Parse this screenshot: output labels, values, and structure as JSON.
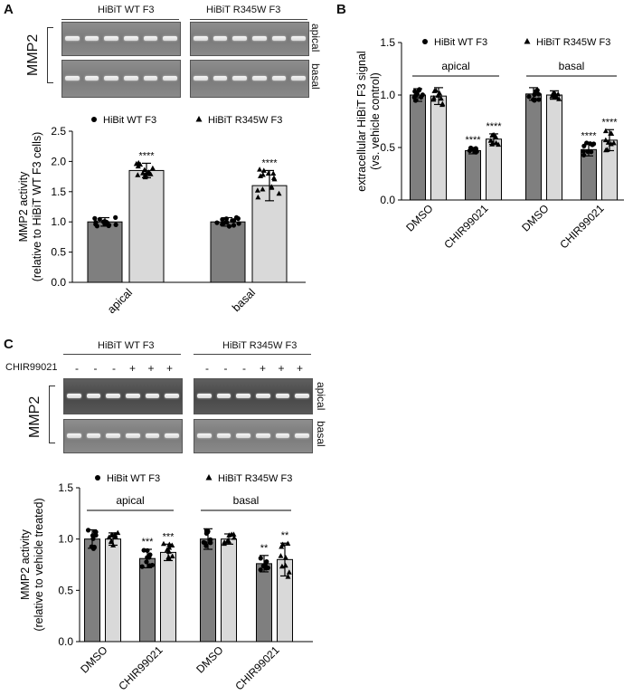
{
  "panels": {
    "a": "A",
    "b": "B",
    "c": "C"
  },
  "gels": {
    "top": {
      "group1": "HiBiT WT F3",
      "group2": "HiBiT R345W F3",
      "protein": "MMP2",
      "row1": "apical",
      "row2": "basal"
    },
    "bottom": {
      "group1": "HiBiT WT F3",
      "group2": "HiBiT R345W F3",
      "protein": "MMP2",
      "row1": "apical",
      "row2": "basal",
      "treatment_label": "CHIR99021",
      "signs": [
        "-",
        "-",
        "-",
        "+",
        "+",
        "+",
        "-",
        "-",
        "-",
        "+",
        "+",
        "+"
      ]
    }
  },
  "colors": {
    "dark_bar": "#7f7f7f",
    "light_bar": "#d9d9d9",
    "axis": "#000000"
  },
  "chart_data": [
    {
      "type": "bar",
      "id": "A",
      "categories": [
        "apical",
        "basal"
      ],
      "series": [
        {
          "name": "HiBit WT F3",
          "marker": "circle",
          "values": [
            1.0,
            1.0
          ],
          "error": [
            0.07,
            0.07
          ]
        },
        {
          "name": "HiBiT R345W F3",
          "marker": "triangle",
          "values": [
            1.85,
            1.6
          ],
          "error": [
            0.12,
            0.25
          ]
        }
      ],
      "significance": [
        "",
        "****",
        "",
        "****"
      ],
      "ylabel": "MMP2 activity",
      "ylabel2": "(relative to HiBiT  WT F3 cells)",
      "ylim": [
        0,
        2.5
      ],
      "yticks": [
        "0.0",
        "0.5",
        "1.0",
        "1.5",
        "2.0",
        "2.5"
      ],
      "legend_placement": "top"
    },
    {
      "type": "bar",
      "id": "B",
      "groups": [
        "apical",
        "basal"
      ],
      "categories": [
        "DMSO",
        "CHIR99021",
        "DMSO",
        "CHIR99021"
      ],
      "series": [
        {
          "name": "HiBit WT F3",
          "marker": "circle",
          "values": [
            1.0,
            0.47,
            1.01,
            0.48
          ],
          "error": [
            0.06,
            0.03,
            0.06,
            0.06
          ]
        },
        {
          "name": "HiBiT R345W F3",
          "marker": "triangle",
          "values": [
            0.99,
            0.58,
            1.0,
            0.57
          ],
          "error": [
            0.08,
            0.05,
            0.04,
            0.1
          ]
        }
      ],
      "significance": [
        "",
        "",
        "****",
        "****",
        "",
        "",
        "****",
        "****"
      ],
      "ylabel": "extracellular HiBiT F3 signal",
      "ylabel2": "(vs. vehicle control)",
      "ylim": [
        0,
        1.5
      ],
      "yticks": [
        "0.0",
        "0.5",
        "1.0",
        "1.5"
      ],
      "legend_placement": "top"
    },
    {
      "type": "bar",
      "id": "C",
      "groups": [
        "apical",
        "basal"
      ],
      "categories": [
        "DMSO",
        "CHIR99021",
        "DMSO",
        "CHIR99021"
      ],
      "series": [
        {
          "name": "HiBit WT F3",
          "marker": "circle",
          "values": [
            1.0,
            0.81,
            1.0,
            0.76
          ],
          "error": [
            0.09,
            0.09,
            0.1,
            0.08
          ]
        },
        {
          "name": "HiBiT R345W F3",
          "marker": "triangle",
          "values": [
            1.0,
            0.87,
            1.0,
            0.8
          ],
          "error": [
            0.06,
            0.08,
            0.05,
            0.16
          ]
        }
      ],
      "significance": [
        "",
        "",
        "***",
        "***",
        "",
        "",
        "**",
        "**"
      ],
      "ylabel": "MMP2 activity",
      "ylabel2": "(relative to vehicle treated)",
      "ylim": [
        0,
        1.5
      ],
      "yticks": [
        "0.0",
        "0.5",
        "1.0",
        "1.5"
      ],
      "legend_placement": "top"
    }
  ]
}
